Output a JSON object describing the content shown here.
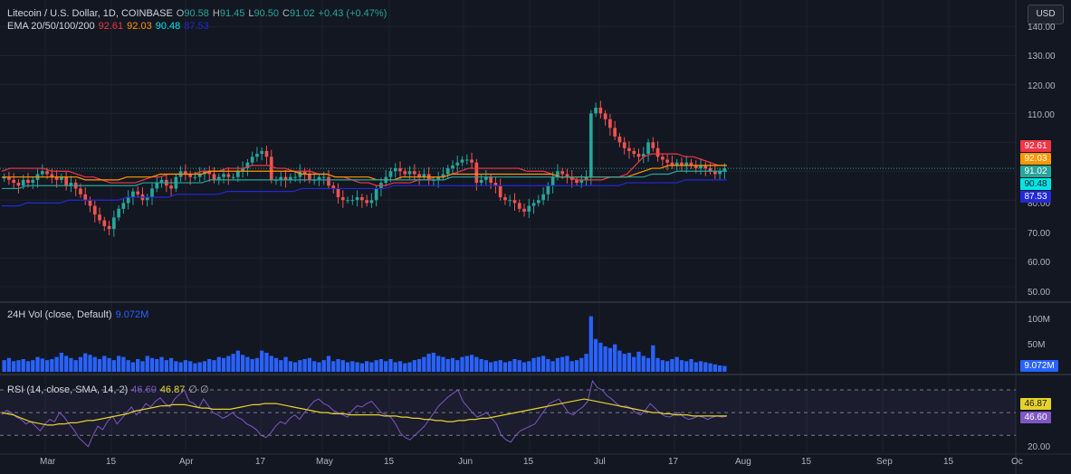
{
  "header": {
    "symbol": "Litecoin / U.S. Dollar, 1D, COINBASE",
    "o_label": "O",
    "o_value": "90.58",
    "h_label": "H",
    "h_value": "91.45",
    "l_label": "L",
    "l_value": "90.50",
    "c_label": "C",
    "c_value": "91.02",
    "change": "+0.43 (+0.47%)"
  },
  "ema_legend": {
    "label": "EMA 20/50/100/200",
    "values": [
      "92.61",
      "92.03",
      "90.48",
      "87.53"
    ]
  },
  "currency_button": "USD",
  "price_axis": {
    "ticks": [
      "140.00",
      "130.00",
      "120.00",
      "110.00",
      "80.00",
      "70.00",
      "60.00",
      "50.00"
    ],
    "tags": [
      {
        "text": "92.61",
        "color": "#f23645"
      },
      {
        "text": "92.03",
        "color": "#ff9800"
      },
      {
        "text": "91.02",
        "color": "#26a69a"
      },
      {
        "text": "90.48",
        "color": "#00e5e5"
      },
      {
        "text": "87.53",
        "color": "#2329d6"
      }
    ]
  },
  "volume_legend": {
    "label": "24H Vol (close, Default)",
    "value": "9.072M"
  },
  "volume_axis": {
    "ticks": [
      "100M",
      "50M"
    ],
    "tag": "9.072M"
  },
  "rsi_legend": {
    "label": "RSI (14, close, SMA, 14, 2)",
    "v1": "46.60",
    "v2": "46.87",
    "tail": "∅ ∅"
  },
  "rsi_axis": {
    "ticks": [
      "20.00"
    ],
    "tags": [
      "46.87",
      "46.60"
    ]
  },
  "time_axis": [
    "Mar",
    "15",
    "Apr",
    "17",
    "May",
    "15",
    "Jun",
    "15",
    "Jul",
    "17",
    "Aug",
    "15",
    "Sep",
    "15",
    "Oc"
  ],
  "colors": {
    "up": "#26a69a",
    "down": "#ef5350",
    "ema20": "#f23645",
    "ema50": "#ff9800",
    "ema100": "#26a69a",
    "ema200": "#2329d6",
    "volume": "#2962ff",
    "rsi": "#7e57c2",
    "rsi_ma": "#e6d32a"
  },
  "chart_data": {
    "type": "candlestick",
    "price_range": [
      45,
      143
    ],
    "closes": [
      88,
      87,
      86,
      85,
      87,
      86,
      87,
      89,
      90,
      89,
      88,
      87,
      88,
      85,
      86,
      84,
      82,
      80,
      78,
      75,
      73,
      71,
      70,
      74,
      77,
      79,
      81,
      83,
      82,
      80,
      81,
      84,
      86,
      87,
      85,
      84,
      88,
      90,
      89,
      88,
      88,
      89,
      90,
      89,
      87,
      88,
      89,
      88,
      88,
      90,
      91,
      93,
      95,
      96,
      97,
      95,
      87,
      87,
      88,
      87,
      88,
      88,
      90,
      89,
      87,
      87,
      88,
      88,
      85,
      84,
      81,
      80,
      80,
      80,
      81,
      80,
      79,
      80,
      84,
      86,
      88,
      90,
      91,
      90,
      89,
      90,
      89,
      88,
      89,
      87,
      87,
      88,
      89,
      91,
      92,
      93,
      94,
      94,
      93,
      86,
      87,
      88,
      86,
      85,
      81,
      80,
      80,
      79,
      77,
      76,
      78,
      79,
      80,
      82,
      85,
      88,
      90,
      89,
      88,
      87,
      86,
      87,
      88,
      110,
      112,
      110,
      108,
      105,
      102,
      100,
      98,
      97,
      96,
      95,
      96,
      100,
      98,
      95,
      94,
      93,
      92,
      93,
      92,
      93,
      92,
      91,
      92,
      91,
      90,
      89,
      90,
      91
    ],
    "ema": {
      "20": [
        90,
        91,
        91,
        91,
        91,
        91,
        90,
        90,
        90,
        89,
        88,
        88,
        87,
        86,
        86,
        86,
        86,
        87,
        88,
        88,
        89,
        89,
        89,
        89,
        90,
        90,
        90,
        91,
        91,
        91,
        92,
        92,
        92,
        91,
        91,
        90,
        90,
        90,
        89,
        89,
        88,
        88,
        87,
        86,
        86,
        85,
        85,
        86,
        86,
        86,
        87,
        87,
        88,
        88,
        89,
        90,
        91,
        91,
        91,
        91,
        91,
        91,
        91,
        90,
        90,
        90,
        89,
        88,
        88,
        87,
        87,
        87,
        87,
        88,
        88,
        89,
        92,
        95,
        96,
        96,
        96,
        96,
        95,
        95,
        94,
        93,
        92,
        92
      ],
      "50": [
        88,
        88,
        88,
        88,
        88,
        88,
        88,
        88,
        88,
        88,
        87,
        87,
        87,
        87,
        87,
        88,
        88,
        88,
        88,
        89,
        89,
        89,
        89,
        89,
        89,
        90,
        90,
        90,
        90,
        90,
        90,
        90,
        90,
        90,
        90,
        90,
        89,
        89,
        89,
        89,
        88,
        88,
        88,
        88,
        88,
        87,
        87,
        87,
        88,
        88,
        88,
        88,
        88,
        88,
        89,
        89,
        89,
        89,
        89,
        89,
        89,
        89,
        89,
        89,
        89,
        89,
        89,
        88,
        88,
        88,
        88,
        88,
        88,
        88,
        88,
        88,
        89,
        90,
        91,
        91,
        92,
        92,
        92,
        92,
        92,
        92,
        92,
        92
      ],
      "100": [
        84,
        84,
        84,
        85,
        85,
        85,
        85,
        85,
        85,
        85,
        85,
        85,
        85,
        85,
        85,
        85,
        85,
        86,
        86,
        86,
        86,
        86,
        86,
        86,
        86,
        87,
        87,
        87,
        87,
        87,
        87,
        87,
        87,
        87,
        87,
        87,
        87,
        87,
        87,
        87,
        87,
        87,
        87,
        87,
        87,
        87,
        87,
        87,
        87,
        87,
        87,
        87,
        87,
        87,
        88,
        88,
        88,
        88,
        88,
        88,
        88,
        88,
        88,
        88,
        88,
        88,
        88,
        88,
        88,
        88,
        88,
        88,
        88,
        88,
        88,
        88,
        88,
        88,
        89,
        89,
        89,
        90,
        90,
        90,
        90,
        90,
        90,
        90
      ],
      "200": [
        78,
        78,
        78,
        79,
        79,
        79,
        79,
        79,
        80,
        80,
        80,
        80,
        80,
        80,
        80,
        81,
        81,
        81,
        81,
        81,
        81,
        82,
        82,
        82,
        82,
        82,
        82,
        83,
        83,
        83,
        83,
        83,
        83,
        83,
        83,
        83,
        84,
        84,
        84,
        84,
        84,
        84,
        84,
        84,
        84,
        84,
        84,
        85,
        85,
        85,
        85,
        85,
        85,
        85,
        85,
        85,
        85,
        85,
        85,
        85,
        85,
        85,
        85,
        85,
        85,
        85,
        85,
        85,
        85,
        85,
        85,
        85,
        85,
        85,
        85,
        86,
        86,
        86,
        86,
        86,
        86,
        86,
        87,
        87,
        87,
        87,
        87,
        87
      ]
    },
    "volume_range_m": [
      0,
      130
    ],
    "volume_m": [
      22,
      26,
      20,
      22,
      24,
      20,
      22,
      28,
      25,
      22,
      24,
      28,
      36,
      30,
      26,
      22,
      28,
      35,
      32,
      28,
      24,
      30,
      26,
      22,
      30,
      28,
      22,
      18,
      24,
      20,
      30,
      26,
      24,
      28,
      22,
      26,
      20,
      18,
      22,
      20,
      16,
      18,
      20,
      24,
      22,
      28,
      26,
      30,
      34,
      40,
      32,
      28,
      24,
      26,
      40,
      36,
      30,
      26,
      22,
      28,
      20,
      18,
      22,
      24,
      26,
      20,
      18,
      22,
      30,
      20,
      24,
      22,
      18,
      20,
      18,
      16,
      20,
      18,
      22,
      24,
      20,
      24,
      18,
      20,
      16,
      18,
      22,
      24,
      28,
      34,
      36,
      30,
      28,
      24,
      26,
      22,
      28,
      30,
      32,
      28,
      24,
      22,
      18,
      20,
      22,
      18,
      20,
      24,
      22,
      18,
      20,
      26,
      28,
      30,
      24,
      20,
      26,
      28,
      30,
      20,
      22,
      26,
      34,
      105,
      62,
      55,
      48,
      45,
      52,
      40,
      34,
      36,
      28,
      38,
      30,
      26,
      50,
      26,
      22,
      20,
      24,
      28,
      22,
      20,
      24,
      18,
      20,
      18,
      16,
      14,
      12,
      11
    ],
    "rsi_range": [
      15,
      82
    ],
    "rsi": [
      48,
      52,
      50,
      46,
      44,
      40,
      42,
      38,
      34,
      40,
      44,
      42,
      50,
      46,
      40,
      35,
      28,
      24,
      20,
      30,
      38,
      35,
      42,
      47,
      40,
      45,
      50,
      55,
      48,
      52,
      58,
      55,
      60,
      63,
      58,
      55,
      62,
      66,
      70,
      60,
      58,
      54,
      62,
      56,
      50,
      48,
      45,
      47,
      50,
      46,
      44,
      40,
      38,
      35,
      30,
      28,
      32,
      38,
      42,
      40,
      45,
      48,
      44,
      50,
      55,
      60,
      62,
      58,
      56,
      52,
      50,
      48,
      46,
      52,
      56,
      55,
      58,
      60,
      55,
      50,
      48,
      46,
      40,
      32,
      28,
      26,
      30,
      34,
      38,
      44,
      50,
      56,
      60,
      64,
      67,
      70,
      60,
      55,
      50,
      46,
      48,
      50,
      45,
      40,
      30,
      26,
      24,
      30,
      34,
      36,
      38,
      40,
      46,
      52,
      58,
      60,
      62,
      56,
      50,
      48,
      52,
      55,
      60,
      78,
      72,
      70,
      65,
      62,
      58,
      55,
      56,
      54,
      50,
      48,
      52,
      58,
      54,
      50,
      47,
      46,
      48,
      50,
      46,
      44,
      45,
      47,
      46,
      44,
      46,
      47,
      46,
      47
    ],
    "rsi_ma": [
      50,
      49,
      48,
      46,
      44,
      42,
      41,
      40,
      39,
      39,
      40,
      40,
      41,
      41,
      42,
      43,
      43,
      44,
      45,
      46,
      47,
      48,
      49,
      51,
      52,
      53,
      54,
      55,
      56,
      56,
      57,
      57,
      57,
      56,
      55,
      54,
      54,
      53,
      53,
      53,
      53,
      54,
      55,
      56,
      57,
      57,
      58,
      58,
      58,
      57,
      56,
      55,
      54,
      53,
      52,
      51,
      50,
      50,
      49,
      49,
      49,
      48,
      48,
      48,
      48,
      48,
      48,
      47,
      47,
      47,
      46,
      46,
      45,
      45,
      44,
      44,
      43,
      43,
      42,
      42,
      43,
      43,
      44,
      44,
      45,
      45,
      46,
      47,
      48,
      49,
      50,
      51,
      52,
      53,
      54,
      55,
      56,
      57,
      58,
      59,
      60,
      61,
      62,
      61,
      60,
      59,
      58,
      57,
      56,
      55,
      54,
      53,
      52,
      51,
      50,
      50,
      49,
      49,
      48,
      48,
      48,
      47,
      47,
      47,
      47,
      47,
      47,
      47
    ],
    "rsi_levels": [
      70,
      50,
      30
    ]
  }
}
